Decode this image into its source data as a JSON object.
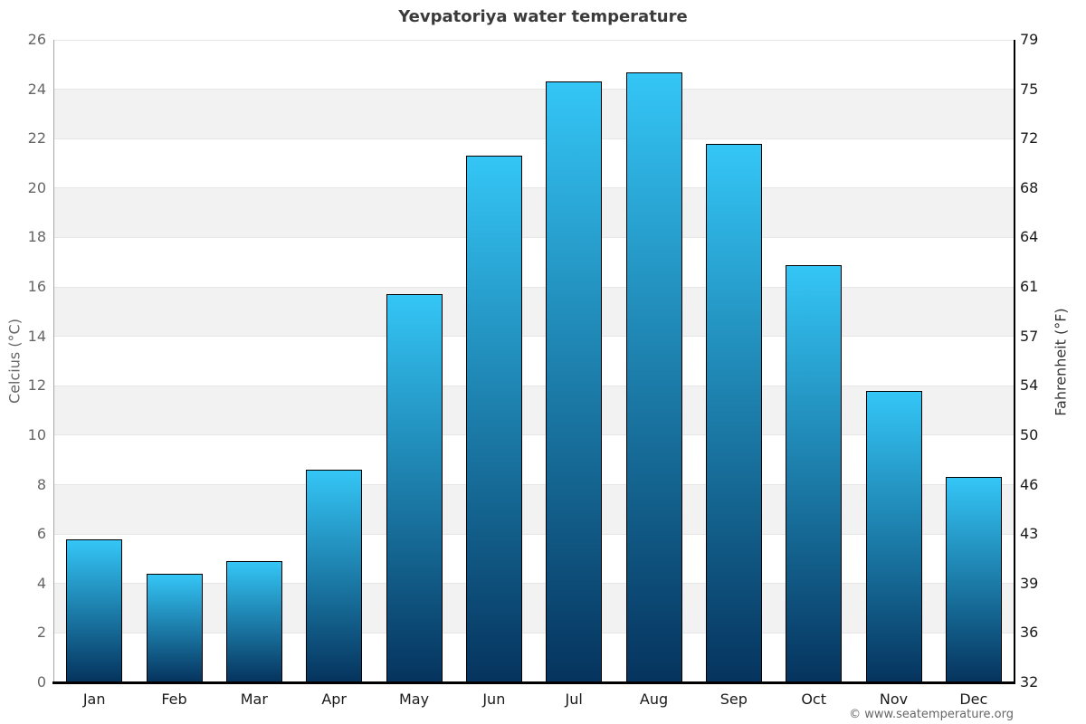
{
  "title": "Yevpatoriya water temperature",
  "footer": "© www.seatemperature.org",
  "chart_data": {
    "type": "bar",
    "title": "Yevpatoriya water temperature",
    "categories": [
      "Jan",
      "Feb",
      "Mar",
      "Apr",
      "May",
      "Jun",
      "Jul",
      "Aug",
      "Sep",
      "Oct",
      "Nov",
      "Dec"
    ],
    "values": [
      5.8,
      4.4,
      4.9,
      8.6,
      15.7,
      21.3,
      24.3,
      24.7,
      21.8,
      16.9,
      11.8,
      8.3
    ],
    "ylabel_left": "Celcius (°C)",
    "ylabel_right": "Fahrenheit (°F)",
    "ylim_left": [
      0,
      26
    ],
    "yticks_left": [
      0,
      2,
      4,
      6,
      8,
      10,
      12,
      14,
      16,
      18,
      20,
      22,
      24,
      26
    ],
    "yticks_right_labels": [
      "32",
      "36",
      "39",
      "43",
      "46",
      "50",
      "54",
      "57",
      "61",
      "64",
      "68",
      "72",
      "75",
      "79"
    ],
    "legend": "none",
    "grid": "alternating horizontal bands",
    "colors": {
      "bar_top": "#34c6f6",
      "bar_bottom": "#05345e",
      "bar_border": "#000000",
      "band": "#f2f2f2",
      "gridline": "#e6e6e6",
      "title": "#3b3b3b",
      "left_ticks": "#666666",
      "right_ticks": "#1a1a1a"
    }
  }
}
